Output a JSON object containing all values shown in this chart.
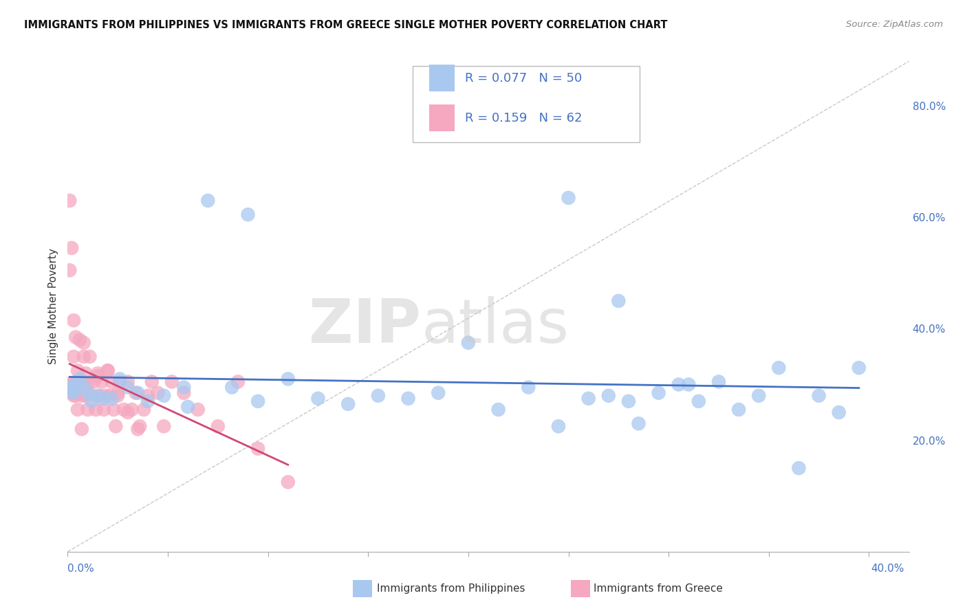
{
  "title": "IMMIGRANTS FROM PHILIPPINES VS IMMIGRANTS FROM GREECE SINGLE MOTHER POVERTY CORRELATION CHART",
  "source": "Source: ZipAtlas.com",
  "ylabel": "Single Mother Poverty",
  "right_yticklabels": [
    "20.0%",
    "40.0%",
    "60.0%",
    "80.0%"
  ],
  "right_yticks": [
    0.2,
    0.4,
    0.6,
    0.8
  ],
  "xlim": [
    0.0,
    0.42
  ],
  "ylim": [
    0.0,
    0.88
  ],
  "watermark": "ZIPatlas",
  "legend_r1": "R = 0.077",
  "legend_n1": "N = 50",
  "legend_r2": "R = 0.159",
  "legend_n2": "N = 62",
  "color_philippines": "#a8c8f0",
  "color_greece": "#f5a8c0",
  "color_philippines_line": "#4472c4",
  "color_greece_line": "#d04870",
  "philippines_x": [
    0.001,
    0.002,
    0.003,
    0.004,
    0.006,
    0.008,
    0.01,
    0.012,
    0.015,
    0.018,
    0.022,
    0.026,
    0.03,
    0.035,
    0.04,
    0.048,
    0.058,
    0.07,
    0.082,
    0.095,
    0.11,
    0.125,
    0.14,
    0.155,
    0.17,
    0.185,
    0.2,
    0.215,
    0.23,
    0.245,
    0.26,
    0.27,
    0.28,
    0.285,
    0.295,
    0.305,
    0.315,
    0.325,
    0.335,
    0.345,
    0.355,
    0.365,
    0.375,
    0.385,
    0.395,
    0.25,
    0.275,
    0.31,
    0.06,
    0.09
  ],
  "philippines_y": [
    0.295,
    0.29,
    0.285,
    0.3,
    0.31,
    0.295,
    0.285,
    0.27,
    0.28,
    0.275,
    0.275,
    0.31,
    0.295,
    0.285,
    0.27,
    0.28,
    0.295,
    0.63,
    0.295,
    0.27,
    0.31,
    0.275,
    0.265,
    0.28,
    0.275,
    0.285,
    0.375,
    0.255,
    0.295,
    0.225,
    0.275,
    0.28,
    0.27,
    0.23,
    0.285,
    0.3,
    0.27,
    0.305,
    0.255,
    0.28,
    0.33,
    0.15,
    0.28,
    0.25,
    0.33,
    0.635,
    0.45,
    0.3,
    0.26,
    0.605
  ],
  "greece_x": [
    0.001,
    0.001,
    0.001,
    0.002,
    0.002,
    0.002,
    0.003,
    0.003,
    0.003,
    0.004,
    0.004,
    0.005,
    0.005,
    0.006,
    0.006,
    0.007,
    0.007,
    0.008,
    0.008,
    0.009,
    0.009,
    0.01,
    0.01,
    0.011,
    0.012,
    0.013,
    0.014,
    0.015,
    0.016,
    0.017,
    0.018,
    0.019,
    0.02,
    0.021,
    0.022,
    0.023,
    0.024,
    0.025,
    0.026,
    0.028,
    0.03,
    0.032,
    0.034,
    0.036,
    0.038,
    0.04,
    0.042,
    0.045,
    0.048,
    0.052,
    0.058,
    0.065,
    0.075,
    0.085,
    0.095,
    0.11,
    0.02,
    0.03,
    0.015,
    0.025,
    0.035,
    0.008
  ],
  "greece_y": [
    0.295,
    0.63,
    0.505,
    0.285,
    0.545,
    0.3,
    0.415,
    0.35,
    0.28,
    0.385,
    0.28,
    0.325,
    0.255,
    0.3,
    0.38,
    0.28,
    0.22,
    0.3,
    0.35,
    0.28,
    0.32,
    0.255,
    0.3,
    0.35,
    0.28,
    0.305,
    0.255,
    0.32,
    0.28,
    0.305,
    0.255,
    0.28,
    0.325,
    0.28,
    0.305,
    0.255,
    0.225,
    0.285,
    0.305,
    0.255,
    0.305,
    0.255,
    0.285,
    0.225,
    0.255,
    0.28,
    0.305,
    0.285,
    0.225,
    0.305,
    0.285,
    0.255,
    0.225,
    0.305,
    0.185,
    0.125,
    0.325,
    0.25,
    0.315,
    0.28,
    0.22,
    0.375
  ],
  "greece_large_x": [
    0.001
  ],
  "greece_large_y": [
    0.295
  ],
  "bg_color": "#ffffff",
  "grid_color": "#dddddd",
  "ref_line_color": "#bbbbbb",
  "dot_size": 220,
  "large_dot_size": 500
}
